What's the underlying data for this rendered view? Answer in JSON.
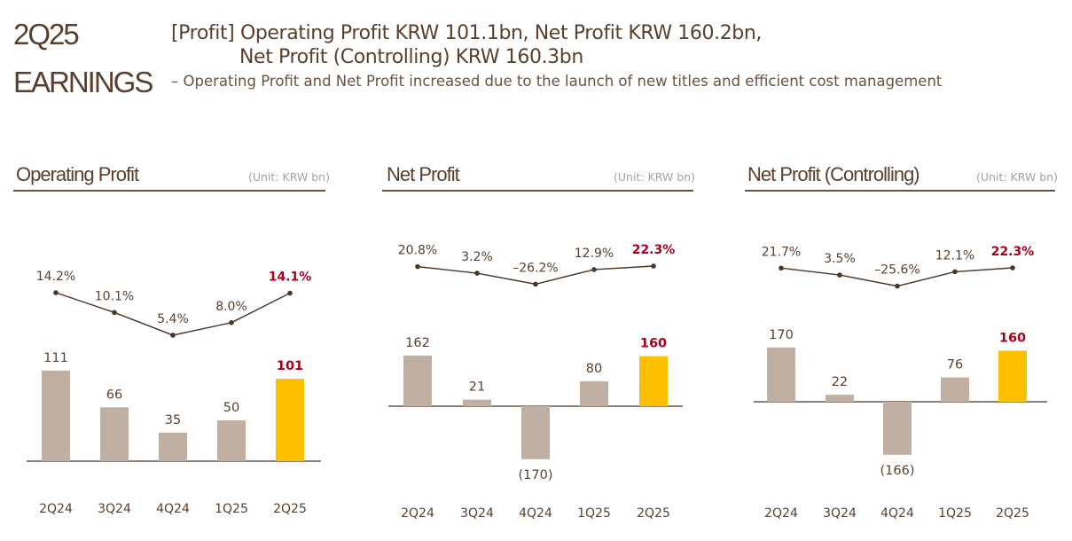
{
  "header": {
    "badge_line1": "2Q25",
    "badge_line2": "EARNINGS",
    "headline_line1": "[Profit] Operating Profit KRW 101.1bn, Net Profit KRW 160.2bn,",
    "headline_line2": "Net Profit (Controlling) KRW 160.3bn",
    "subtitle": "– Operating Profit and Net Profit increased due to the launch of new titles and efficient cost management"
  },
  "colors": {
    "bar": "#c0afa3",
    "highlight_bar": "#fdbf00",
    "highlight_text": "#a8001c",
    "text": "#5a3f2c",
    "line": "#4a3528"
  },
  "chart_data": [
    {
      "type": "bar",
      "title": "Operating Profit",
      "unit": "(Unit: KRW bn)",
      "categories": [
        "2Q24",
        "3Q24",
        "4Q24",
        "1Q25",
        "2Q25"
      ],
      "values": [
        111,
        66,
        35,
        50,
        101
      ],
      "value_labels": [
        "111",
        "66",
        "35",
        "50",
        "101"
      ],
      "margin_series": {
        "type": "line",
        "values": [
          14.2,
          10.1,
          5.4,
          8.0,
          14.1
        ],
        "labels": [
          "14.2%",
          "10.1%",
          "5.4%",
          "8.0%",
          "14.1%"
        ]
      },
      "highlight_index": 4
    },
    {
      "type": "bar",
      "title": "Net Profit",
      "unit": "(Unit: KRW bn)",
      "categories": [
        "2Q24",
        "3Q24",
        "4Q24",
        "1Q25",
        "2Q25"
      ],
      "values": [
        162,
        21,
        -170,
        80,
        160
      ],
      "value_labels": [
        "162",
        "21",
        "(170)",
        "80",
        "160"
      ],
      "margin_series": {
        "type": "line",
        "values": [
          20.8,
          3.2,
          -26.2,
          12.9,
          22.3
        ],
        "labels": [
          "20.8%",
          "3.2%",
          "–26.2%",
          "12.9%",
          "22.3%"
        ]
      },
      "highlight_index": 4
    },
    {
      "type": "bar",
      "title": "Net Profit (Controlling)",
      "unit": "(Unit: KRW bn)",
      "categories": [
        "2Q24",
        "3Q24",
        "4Q24",
        "1Q25",
        "2Q25"
      ],
      "values": [
        170,
        22,
        -166,
        76,
        160
      ],
      "value_labels": [
        "170",
        "22",
        "(166)",
        "76",
        "160"
      ],
      "margin_series": {
        "type": "line",
        "values": [
          21.7,
          3.5,
          -25.6,
          12.1,
          22.3
        ],
        "labels": [
          "21.7%",
          "3.5%",
          "–25.6%",
          "12.1%",
          "22.3%"
        ]
      },
      "highlight_index": 4
    }
  ]
}
